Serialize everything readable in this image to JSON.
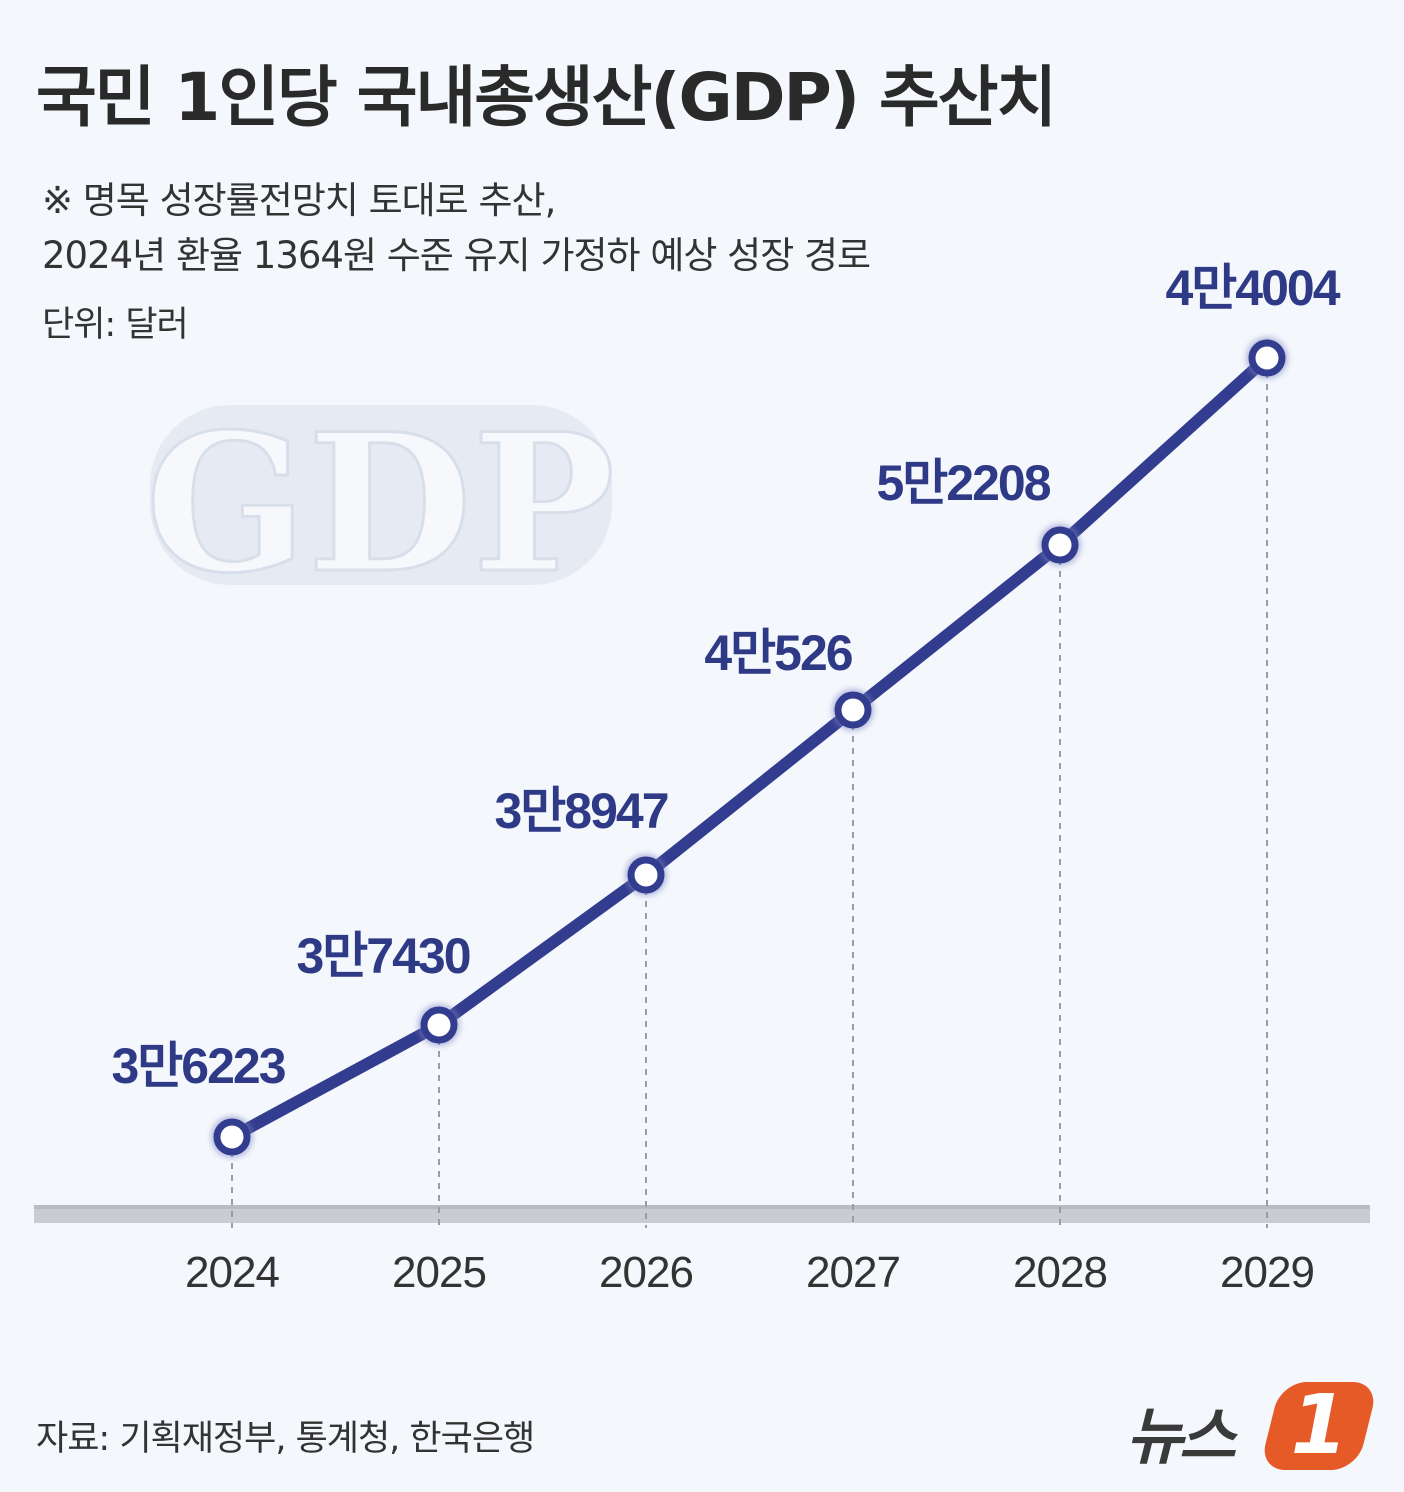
{
  "title": "국민 1인당 국내총생산(GDP) 추산치",
  "note_line1": "※ 명목 성장률전망치 토대로 추산,",
  "note_line2": "2024년 환율 1364원 수준 유지 가정하 예상 성장 경로",
  "unit": "단위: 달러",
  "watermark": "GDP",
  "source": "자료: 기획재정부, 통계청, 한국은행",
  "logo": {
    "text": "뉴스",
    "badge": "1"
  },
  "colors": {
    "line": "#333d8f",
    "label": "#2f3a86",
    "axis": "#c9ccd2",
    "badge": "#e65a27"
  },
  "chart_data": {
    "type": "line",
    "categories": [
      "2024",
      "2025",
      "2026",
      "2027",
      "2028",
      "2029"
    ],
    "values": [
      36223,
      37430,
      38947,
      40526,
      52208,
      44004
    ],
    "data_labels": [
      "3만6223",
      "3만7430",
      "3만8947",
      "4만526",
      "5만2208",
      "4만4004"
    ],
    "title": "국민 1인당 국내총생산(GDP) 추산치",
    "xlabel": "",
    "ylabel": "달러",
    "grid": false
  }
}
